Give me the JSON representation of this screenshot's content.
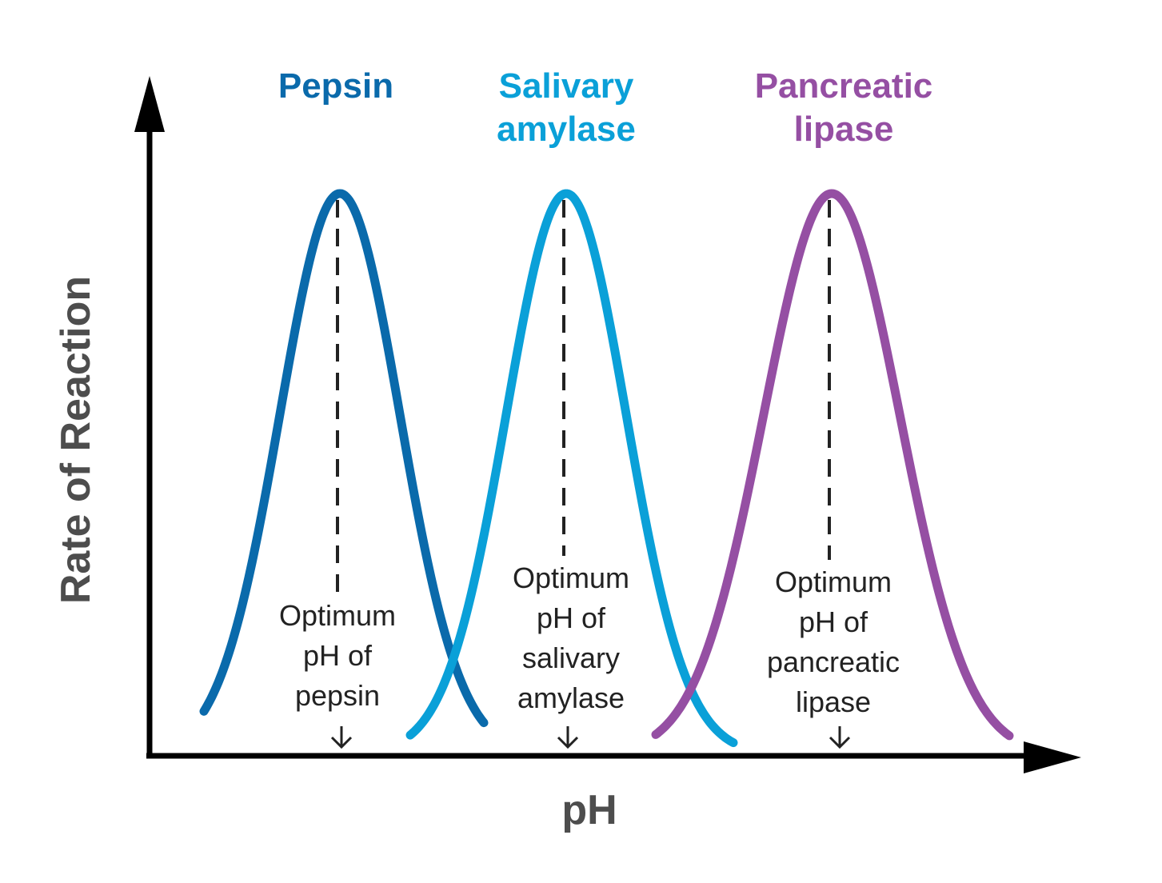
{
  "chart_data": {
    "type": "line",
    "title": "",
    "xlabel": "pH",
    "ylabel": "Rate of Reaction",
    "grid": false,
    "legend": "none",
    "axis_color": "#000000",
    "series": [
      {
        "name": [
          "Pepsin"
        ],
        "color": "#0a6aab",
        "peak_x": 425,
        "spread": 75,
        "range": [
          255,
          605
        ],
        "optimum_label": [
          "Optimum",
          "pH of",
          "pepsin"
        ]
      },
      {
        "name": [
          "Salivary",
          "amylase"
        ],
        "color": "#0aa0d8",
        "peak_x": 708,
        "spread": 75,
        "range": [
          513,
          917
        ],
        "optimum_label": [
          "Optimum",
          "pH of",
          "salivary",
          "amylase"
        ]
      },
      {
        "name": [
          "Pancreatic",
          "lipase"
        ],
        "color": "#954fa3",
        "peak_x": 1040,
        "spread": 85,
        "range": [
          820,
          1262
        ],
        "optimum_label": [
          "Optimum",
          "pH of",
          "pancreatic",
          "lipase"
        ]
      }
    ]
  }
}
